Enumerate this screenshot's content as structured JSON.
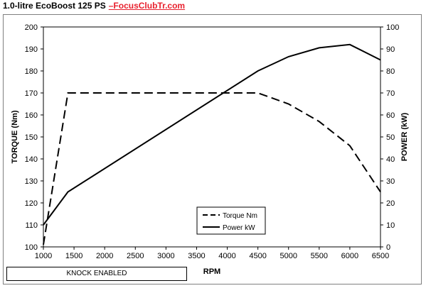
{
  "header": {
    "title": "1.0-litre EcoBoost 125 PS",
    "site": "–FocusClubTr.com"
  },
  "status_box": {
    "label": "KNOCK ENABLED"
  },
  "chart_data": {
    "type": "line",
    "title": "1.0-litre EcoBoost 125 PS",
    "xlabel": "RPM",
    "ylabel": "TORQUE (Nm)",
    "y2label": "POWER (kW)",
    "xlim": [
      1000,
      6500
    ],
    "ylim": [
      100,
      200
    ],
    "y2lim": [
      0,
      100
    ],
    "xticks": [
      1000,
      1500,
      2000,
      2500,
      3000,
      3500,
      4000,
      4500,
      5000,
      5500,
      6000,
      6500
    ],
    "yticks": [
      100,
      110,
      120,
      130,
      140,
      150,
      160,
      170,
      180,
      190,
      200
    ],
    "y2ticks": [
      0,
      10,
      20,
      30,
      40,
      50,
      60,
      70,
      80,
      90,
      100
    ],
    "grid": false,
    "legend_position": "bottom-center",
    "series": [
      {
        "name": "Torque Nm",
        "axis": "left",
        "style": "dashed",
        "color": "#000000",
        "x": [
          1000,
          1400,
          4500,
          5000,
          5500,
          6000,
          6500
        ],
        "y": [
          101,
          170,
          170,
          165,
          157,
          146,
          125
        ]
      },
      {
        "name": "Power kW",
        "axis": "right",
        "style": "solid",
        "color": "#000000",
        "x": [
          1000,
          1400,
          4500,
          5000,
          5500,
          6000,
          6500
        ],
        "y": [
          10,
          25,
          80,
          86.5,
          90.5,
          92,
          85
        ]
      }
    ]
  }
}
